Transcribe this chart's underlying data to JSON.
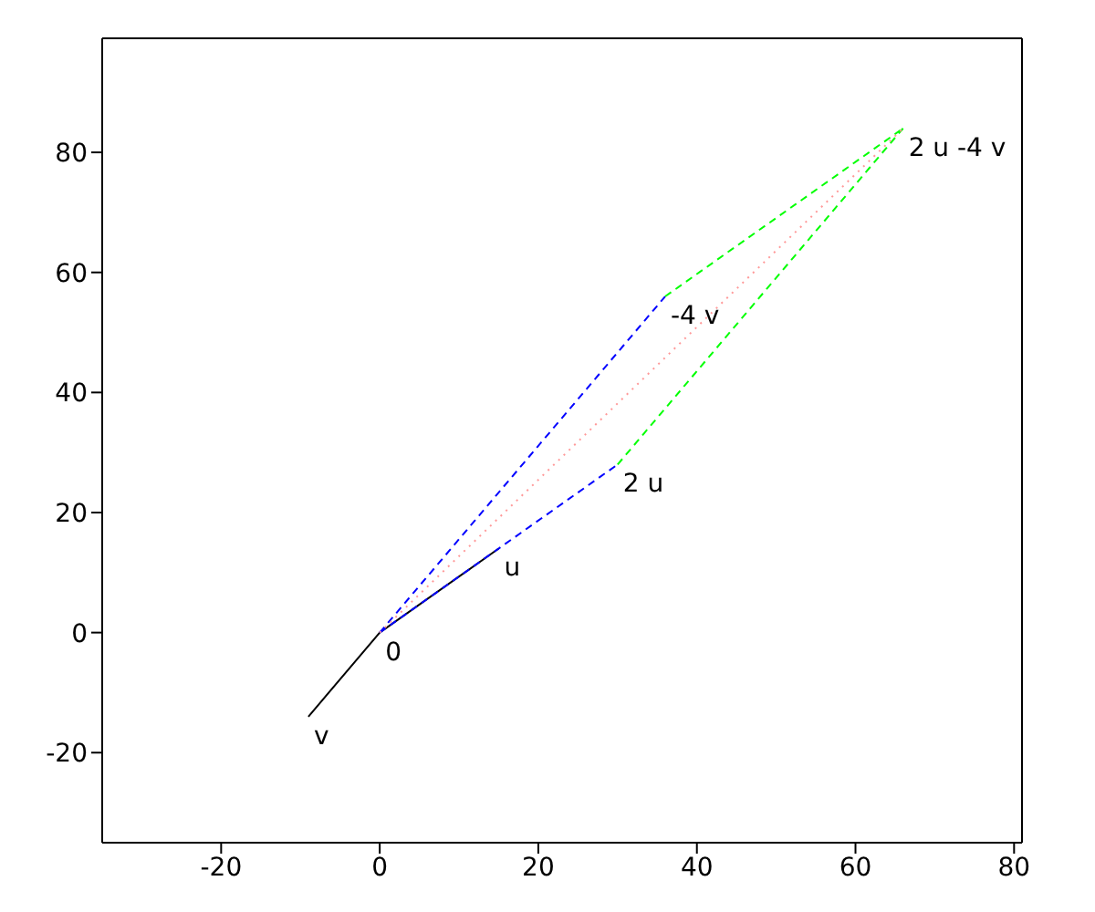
{
  "chart_data": {
    "type": "line",
    "xlim": [
      -35,
      81
    ],
    "ylim": [
      -35,
      99
    ],
    "xticks": [
      -20,
      0,
      20,
      40,
      60,
      80
    ],
    "yticks": [
      -20,
      0,
      20,
      40,
      60,
      80
    ],
    "grid": false,
    "marker": "none",
    "series": [
      {
        "color": "#000000",
        "x": [
          15,
          0,
          -9
        ],
        "values": [
          14,
          0,
          -14
        ],
        "line_style": "solid"
      },
      {
        "color": "#0000ff",
        "x": [
          0,
          36
        ],
        "values": [
          0,
          56
        ],
        "line_style": "dashed"
      },
      {
        "color": "#0000ff",
        "x": [
          0,
          30
        ],
        "values": [
          0,
          28
        ],
        "line_style": "dashed"
      },
      {
        "color": "#00ff00",
        "x": [
          36,
          66
        ],
        "values": [
          56,
          84
        ],
        "line_style": "dashed"
      },
      {
        "color": "#00ff00",
        "x": [
          30,
          66
        ],
        "values": [
          28,
          84
        ],
        "line_style": "dashed"
      },
      {
        "color": "#ff9999",
        "x": [
          0,
          66
        ],
        "values": [
          0,
          84
        ],
        "line_style": "dotted"
      }
    ],
    "annotations": [
      {
        "text": "0",
        "x": 0,
        "y": 0
      },
      {
        "text": "u",
        "x": 15,
        "y": 14
      },
      {
        "text": "v",
        "x": -9,
        "y": -14
      },
      {
        "text": "2 u",
        "x": 30,
        "y": 28
      },
      {
        "text": "-4 v",
        "x": 36,
        "y": 56
      },
      {
        "text": "2 u -4 v",
        "x": 66,
        "y": 84
      }
    ]
  }
}
